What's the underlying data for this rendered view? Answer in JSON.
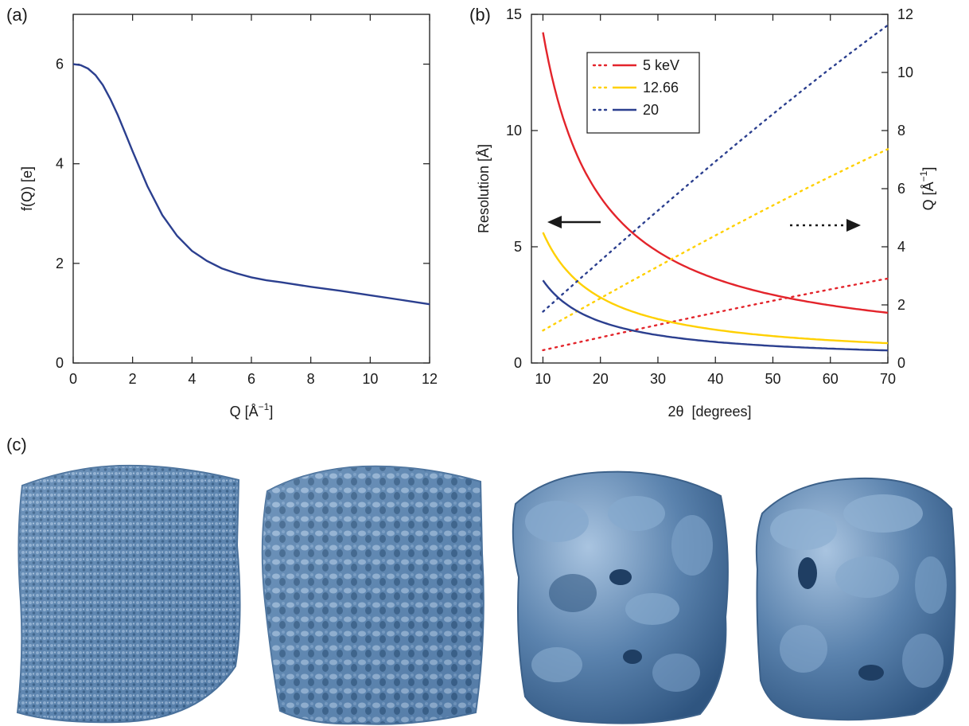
{
  "panels": {
    "a_label": "(a)",
    "b_label": "(b)",
    "c_label": "(c)"
  },
  "chart_data": [
    {
      "id": "a",
      "type": "line",
      "xlabel_main": "Q [Å",
      "xlabel_sup": "−1",
      "xlabel_end": "]",
      "ylabel": "f(Q) [e]",
      "xlim": [
        0,
        12
      ],
      "ylim": [
        0,
        7
      ],
      "xticks": [
        0,
        2,
        4,
        6,
        8,
        10,
        12
      ],
      "yticks": [
        0,
        2,
        4,
        6
      ],
      "grid": false,
      "series": [
        {
          "color": "#2b3f8f",
          "x": [
            0,
            0.25,
            0.5,
            0.75,
            1.0,
            1.25,
            1.5,
            1.75,
            2.0,
            2.5,
            3.0,
            3.5,
            4.0,
            4.5,
            5.0,
            5.5,
            6.0,
            6.5,
            7.0,
            8.0,
            9.0,
            10.0,
            11.0,
            12.0
          ],
          "y": [
            6.0,
            5.98,
            5.91,
            5.78,
            5.58,
            5.3,
            4.98,
            4.62,
            4.25,
            3.55,
            2.97,
            2.55,
            2.25,
            2.05,
            1.9,
            1.8,
            1.72,
            1.66,
            1.62,
            1.53,
            1.45,
            1.36,
            1.27,
            1.18
          ]
        }
      ]
    },
    {
      "id": "b",
      "type": "line",
      "xlabel": "2θ  [degrees]",
      "ylabel": "Resolution [Å]",
      "y2label_main": "Q [Å",
      "y2label_sup": "−1",
      "y2label_end": "]",
      "xlim": [
        8,
        70
      ],
      "ylim": [
        0,
        15
      ],
      "y2lim": [
        0,
        12
      ],
      "xticks": [
        10,
        20,
        30,
        40,
        50,
        60,
        70
      ],
      "yticks": [
        0,
        5,
        10,
        15
      ],
      "y2ticks": [
        0,
        2,
        4,
        6,
        8,
        10,
        12
      ],
      "grid": false,
      "legend_placement": "top-left",
      "series": [
        {
          "name": "5 keV",
          "color": "#e3242b",
          "energy_keV": 5
        },
        {
          "name": "12.66",
          "color": "#ffd000",
          "energy_keV": 12.66
        },
        {
          "name": "20",
          "color": "#2b3f8f",
          "energy_keV": 20
        }
      ],
      "annotations": [
        {
          "type": "arrow",
          "direction": "left",
          "style": "solid",
          "meaning": "resolution axis (left)"
        },
        {
          "type": "arrow",
          "direction": "right",
          "style": "dotted",
          "meaning": "Q axis (right)"
        }
      ]
    }
  ],
  "maps": {
    "fill": "#5e86b0",
    "items": [
      "high-resolution map",
      "medium-high-resolution map",
      "medium-low-resolution map",
      "low-resolution map"
    ]
  }
}
